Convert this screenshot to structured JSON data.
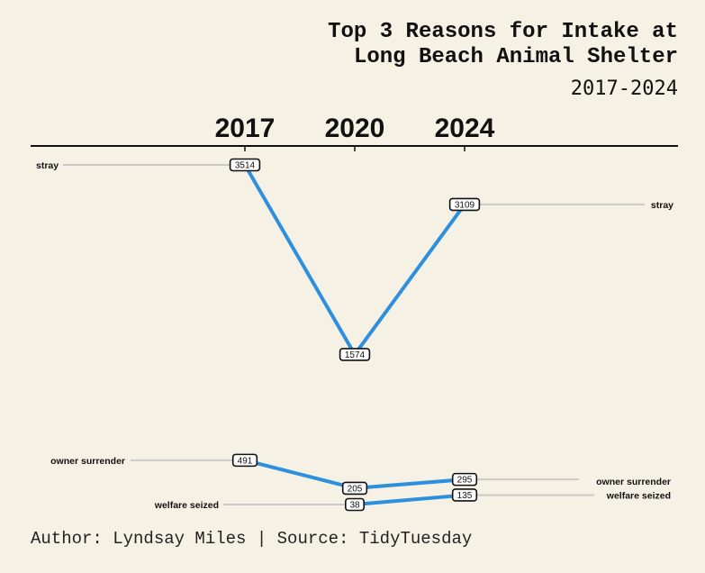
{
  "title_line1": "Top 3 Reasons for Intake at",
  "title_line2": "Long Beach Animal Shelter",
  "subtitle": "2017-2024",
  "caption": "Author: Lyndsay Miles | Source: TidyTuesday",
  "colors": {
    "background": "#f6f1e5",
    "line": "#2e8fdc",
    "guide": "#c9c9c9",
    "axis": "#111111"
  },
  "chart_data": {
    "type": "line",
    "title": "Top 3 Reasons for Intake at Long Beach Animal Shelter",
    "subtitle": "2017-2024",
    "categories": [
      "2017",
      "2020",
      "2024"
    ],
    "series": [
      {
        "name": "stray",
        "values": [
          3514,
          1574,
          3109
        ]
      },
      {
        "name": "owner surrender",
        "values": [
          491,
          205,
          295
        ]
      },
      {
        "name": "welfare seized",
        "values": [
          null,
          38,
          135
        ]
      }
    ],
    "ylim": [
      38,
      3514
    ],
    "grid": false,
    "legend": "none",
    "left_labels": [
      {
        "series": "stray",
        "text": "stray"
      },
      {
        "series": "owner surrender",
        "text": "owner surrender"
      },
      {
        "series": "welfare seized",
        "text": "welfare seized"
      }
    ],
    "right_labels": [
      {
        "series": "stray",
        "text": "stray"
      },
      {
        "series": "owner surrender",
        "text": "owner surrender"
      },
      {
        "series": "welfare seized",
        "text": "welfare seized"
      }
    ]
  }
}
